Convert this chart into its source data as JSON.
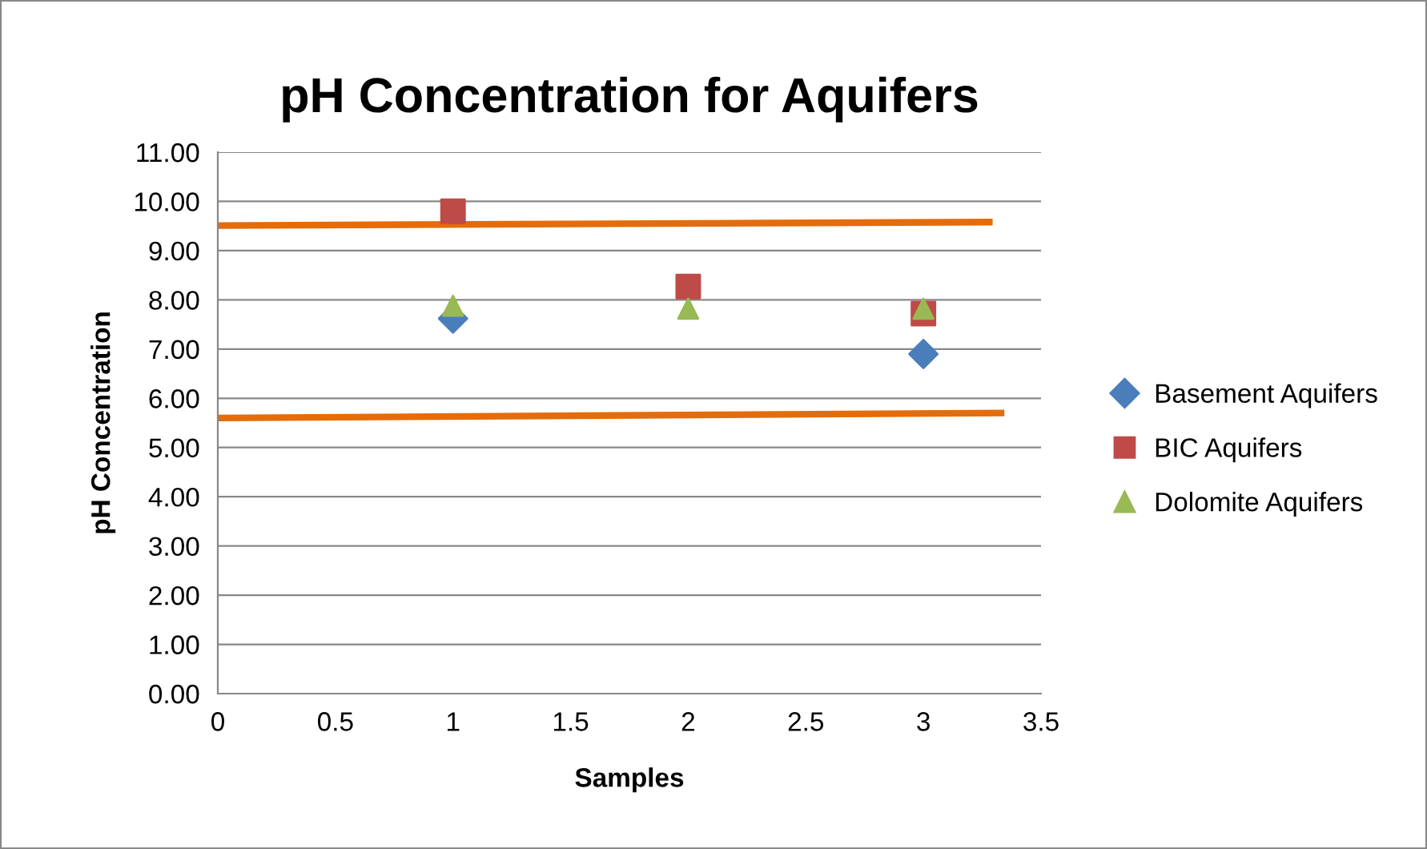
{
  "chart_data": {
    "type": "scatter",
    "title": "pH Concentration for Aquifers",
    "xlabel": "Samples",
    "ylabel": "pH Concentration",
    "x": [
      1,
      2,
      3
    ],
    "series": [
      {
        "name": "Basement Aquifers",
        "color": "#4a7ebb",
        "marker": "diamond",
        "values": [
          7.62,
          null,
          6.9
        ]
      },
      {
        "name": "BIC Aquifers",
        "color": "#be4b48",
        "marker": "square",
        "values": [
          9.8,
          8.27,
          7.72
        ]
      },
      {
        "name": "Dolomite Aquifers",
        "color": "#98b954",
        "marker": "triangle",
        "values": [
          7.88,
          7.82,
          7.82
        ]
      },
      {
        "type": "line",
        "color": "#e46c0a",
        "marker": "none",
        "x": [
          0,
          3.28
        ],
        "values": [
          9.51,
          9.58
        ]
      },
      {
        "type": "line",
        "color": "#e46c0a",
        "marker": "none",
        "x": [
          0,
          3.33
        ],
        "values": [
          5.6,
          5.7
        ]
      }
    ],
    "xlim": [
      0,
      3.5
    ],
    "xticks": [
      0,
      0.5,
      1,
      1.5,
      2,
      2.5,
      3,
      3.5
    ],
    "ylim": [
      0,
      11
    ],
    "yticks": [
      {
        "value": 0,
        "label": "0.00"
      },
      {
        "value": 1,
        "label": "1.00"
      },
      {
        "value": 2,
        "label": "2.00"
      },
      {
        "value": 3,
        "label": "3.00"
      },
      {
        "value": 4,
        "label": "4.00"
      },
      {
        "value": 5,
        "label": "5.00"
      },
      {
        "value": 6,
        "label": "6.00"
      },
      {
        "value": 7,
        "label": "7.00"
      },
      {
        "value": 8,
        "label": "8.00"
      },
      {
        "value": 9,
        "label": "9.00"
      },
      {
        "value": 10,
        "label": "10.00"
      },
      {
        "value": 11,
        "label": "11.00"
      }
    ],
    "grid": "y",
    "legend": "right"
  }
}
